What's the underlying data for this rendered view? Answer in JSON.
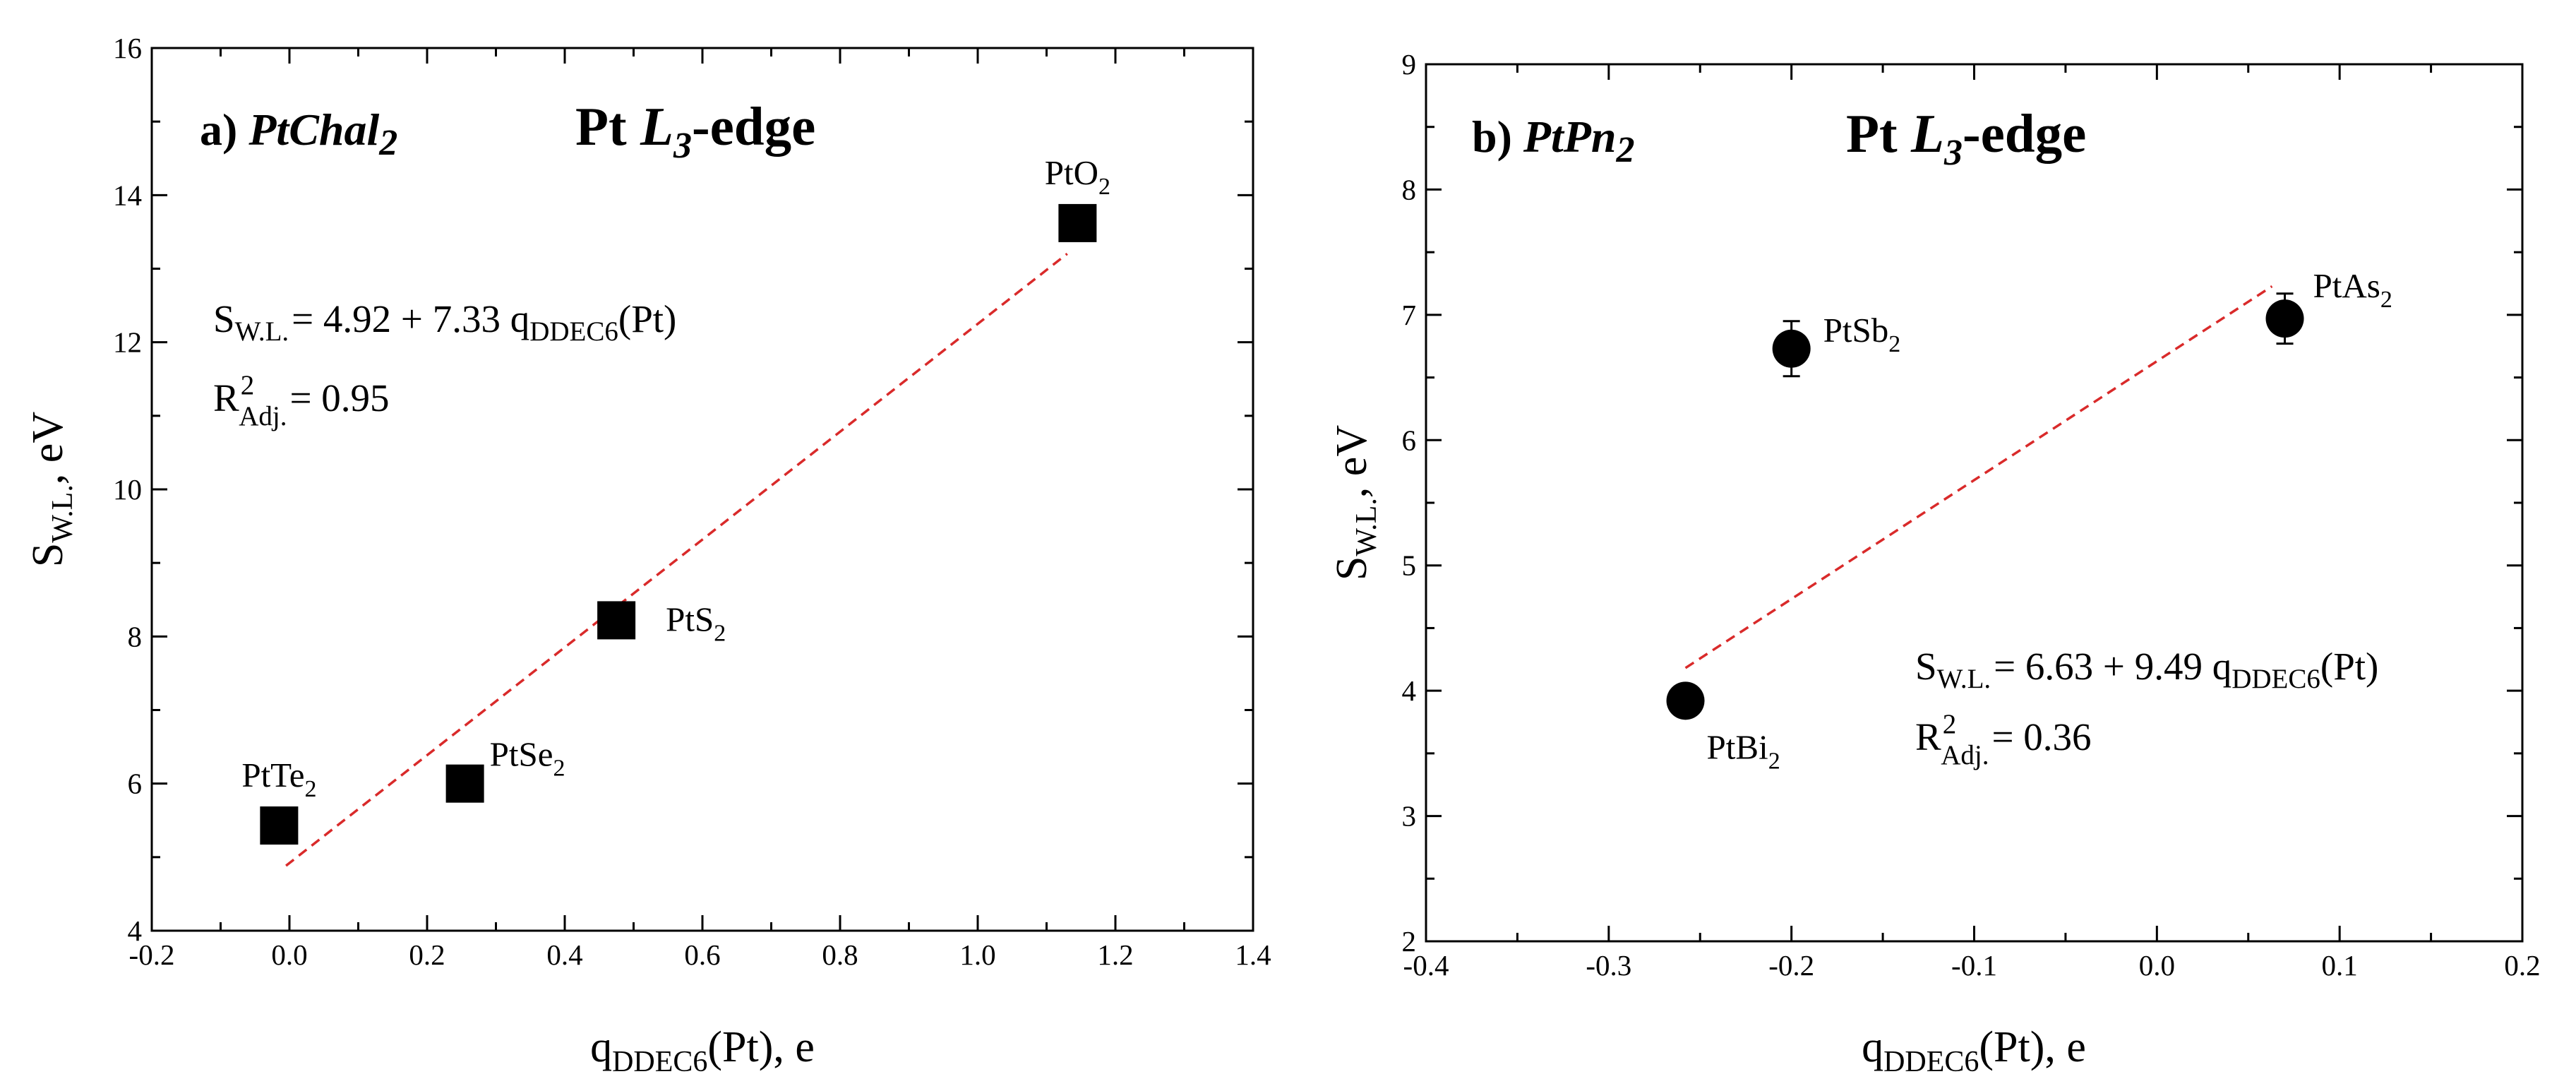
{
  "chart_data": [
    {
      "type": "scatter",
      "panel_label": "a)",
      "panel_compound": "PtChal",
      "panel_compound_sub": "2",
      "edge_title": {
        "main": "Pt ",
        "L": "L",
        "L_sub": "3",
        "rest": "-edge"
      },
      "xlabel": {
        "main": "q",
        "sub": "DDEC6",
        "rest": "(Pt), e"
      },
      "ylabel": {
        "main": "S",
        "sub": "W.L.",
        "rest": ", eV"
      },
      "xlim": [
        -0.2,
        1.4
      ],
      "ylim": [
        4,
        16
      ],
      "xticks": [
        -0.2,
        0.0,
        0.2,
        0.4,
        0.6,
        0.8,
        1.0,
        1.2,
        1.4
      ],
      "xtick_labels": [
        "-0.2",
        "0.0",
        "0.2",
        "0.4",
        "0.6",
        "0.8",
        "1.0",
        "1.2",
        "1.4"
      ],
      "yticks": [
        4,
        6,
        8,
        10,
        12,
        14,
        16
      ],
      "ytick_labels": [
        "4",
        "6",
        "8",
        "10",
        "12",
        "14",
        "16"
      ],
      "marker": "square",
      "points": [
        {
          "label": "PtTe",
          "sub": "2",
          "x": -0.015,
          "y": 5.43,
          "label_pos": "above"
        },
        {
          "label": "PtSe",
          "sub": "2",
          "x": 0.255,
          "y": 6.0,
          "label_pos": "upper-right"
        },
        {
          "label": "PtS",
          "sub": "2",
          "x": 0.475,
          "y": 8.22,
          "label_pos": "right"
        },
        {
          "label": "PtO",
          "sub": "2",
          "x": 1.145,
          "y": 13.62,
          "label_pos": "above"
        }
      ],
      "fit": {
        "intercept": 4.92,
        "slope": 7.33,
        "x_range": [
          -0.005,
          1.13
        ],
        "style": "dashed",
        "color": "#d92a2a"
      },
      "equation": {
        "lhs": "S",
        "lhs_sub": "W.L.",
        "rhs": "= 4.92 + 7.33 q",
        "rhs_sub": "DDEC6",
        "tail": "(Pt)"
      },
      "r2": {
        "R": "R",
        "sup": "2",
        "sub": "Adj.",
        "value": "= 0.95"
      }
    },
    {
      "type": "scatter",
      "panel_label": "b)",
      "panel_compound": "PtPn",
      "panel_compound_sub": "2",
      "edge_title": {
        "main": "Pt ",
        "L": "L",
        "L_sub": "3",
        "rest": "-edge"
      },
      "xlabel": {
        "main": "q",
        "sub": "DDEC6",
        "rest": "(Pt), e"
      },
      "ylabel": {
        "main": "S",
        "sub": "W.L.",
        "rest": ", eV"
      },
      "xlim": [
        -0.4,
        0.2
      ],
      "ylim": [
        2,
        9
      ],
      "xticks": [
        -0.4,
        -0.3,
        -0.2,
        -0.1,
        0.0,
        0.1,
        0.2
      ],
      "xtick_labels": [
        "-0.4",
        "-0.3",
        "-0.2",
        "-0.1",
        "0.0",
        "0.1",
        "0.2"
      ],
      "yticks": [
        2,
        3,
        4,
        5,
        6,
        7,
        8,
        9
      ],
      "ytick_labels": [
        "2",
        "3",
        "4",
        "5",
        "6",
        "7",
        "8",
        "9"
      ],
      "marker": "circle",
      "points": [
        {
          "label": "PtBi",
          "sub": "2",
          "x": -0.258,
          "y": 3.92,
          "err": 0.07,
          "label_pos": "lower-right"
        },
        {
          "label": "PtSb",
          "sub": "2",
          "x": -0.2,
          "y": 6.73,
          "err": 0.22,
          "label_pos": "right"
        },
        {
          "label": "PtAs",
          "sub": "2",
          "x": 0.07,
          "y": 6.97,
          "err": 0.2,
          "label_pos": "upper-right"
        }
      ],
      "fit": {
        "intercept": 6.63,
        "slope": 9.49,
        "x_range": [
          -0.258,
          0.063
        ],
        "style": "dashed",
        "color": "#d92a2a"
      },
      "equation": {
        "lhs": "S",
        "lhs_sub": "W.L.",
        "rhs": "= 6.63 + 9.49 q",
        "rhs_sub": "DDEC6",
        "tail": "(Pt)"
      },
      "r2": {
        "R": "R",
        "sup": "2",
        "sub": "Adj.",
        "value": "= 0.36"
      }
    }
  ]
}
